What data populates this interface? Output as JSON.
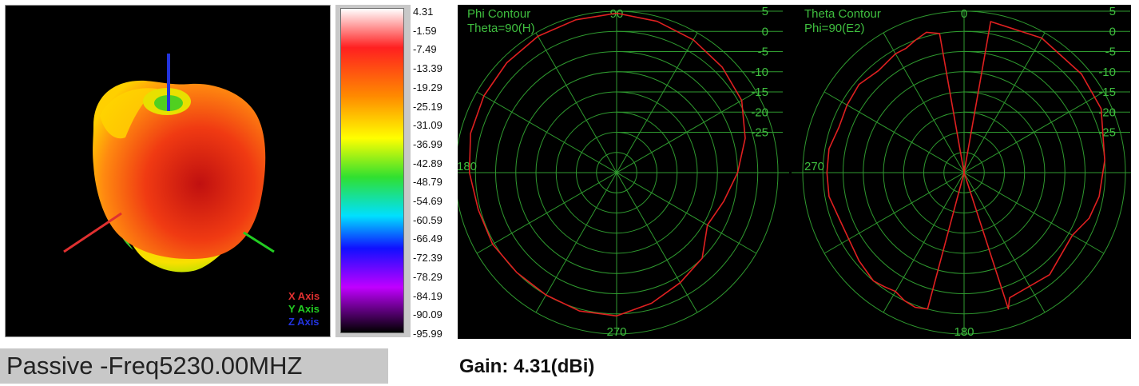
{
  "axis_legend": [
    {
      "label": "X Axis",
      "color": "#e03030"
    },
    {
      "label": "Y Axis",
      "color": "#22cc22"
    },
    {
      "label": "Z Axis",
      "color": "#2233dd"
    }
  ],
  "colorbar": {
    "max_value": 4.31,
    "min_value": -95.99,
    "stops": [
      "#ffffff",
      "#ff2020",
      "#ff8a00",
      "#ffff00",
      "#30e030",
      "#00e0ff",
      "#1010ff",
      "#c000ff",
      "#000000"
    ]
  },
  "scale_labels": [
    "4.31",
    "-1.59",
    "-7.49",
    "-13.39",
    "-19.29",
    "-25.19",
    "-31.09",
    "-36.99",
    "-42.89",
    "-48.79",
    "-54.69",
    "-60.59",
    "-66.49",
    "-72.39",
    "-78.29",
    "-84.19",
    "-90.09",
    "-95.99"
  ],
  "chart_data": [
    {
      "type": "polar",
      "title": "Phi Contour",
      "subtitle": "Theta=90(H)",
      "angle_labels": {
        "top": "90",
        "left": "180",
        "bottom": "270"
      },
      "radial_ticks": [
        5,
        0,
        -5,
        -10,
        -15,
        -20,
        -25
      ],
      "rlim": [
        -35,
        5
      ],
      "grid": true,
      "series": [
        {
          "color": "#e02020",
          "angle_deg": [
            90,
            75,
            60,
            45,
            30,
            15,
            0,
            -15,
            -30,
            -45,
            -60,
            -75,
            -90,
            -105,
            -120,
            -135,
            -150,
            -165,
            -180,
            -195,
            -210,
            -225,
            -240,
            -255
          ],
          "gain_dbi": [
            4.5,
            3.8,
            3.0,
            2.0,
            0.8,
            -2.0,
            -5.0,
            -7.5,
            -9.0,
            -5.0,
            -3.5,
            -1.5,
            0.5,
            0.5,
            0.0,
            0.0,
            0.5,
            0.5,
            1.5,
            2.5,
            3.0,
            3.5,
            4.0,
            4.2
          ]
        }
      ]
    },
    {
      "type": "polar",
      "title": "Theta Contour",
      "subtitle": "Phi=90(E2)",
      "angle_labels": {
        "top": "0",
        "left": "270",
        "bottom": "180"
      },
      "radial_ticks": [
        5,
        0,
        -5,
        -10,
        -15,
        -20,
        -25
      ],
      "rlim": [
        -35,
        5
      ],
      "grid": true,
      "series": [
        {
          "color": "#e02020",
          "angle_deg": [
            0,
            10,
            30,
            50,
            65,
            85,
            100,
            110,
            120,
            140,
            160,
            162,
            170,
            180,
            185,
            195,
            200,
            205,
            210,
            215,
            220,
            230,
            240,
            250,
            260,
            270,
            280,
            290,
            300,
            310,
            320,
            330,
            335,
            340,
            345,
            350,
            358
          ],
          "gain_dbi": [
            -35,
            3.0,
            3.5,
            3.0,
            2.5,
            0.0,
            -1.0,
            -2.0,
            -4.0,
            -2.0,
            -2.0,
            0.5,
            -35,
            -35,
            -35,
            0.0,
            0.5,
            0.0,
            -1.0,
            -0.5,
            0.0,
            -1.0,
            -2.0,
            -2.0,
            -1.0,
            -1.0,
            -1.0,
            -2.0,
            -1.5,
            -1.0,
            -2.0,
            -1.0,
            -1.0,
            0.0,
            1.0,
            0.0,
            -35
          ]
        }
      ]
    }
  ],
  "footer": {
    "mode_label": "Passive -Freq5230.00MHZ",
    "gain_label": "Gain: 4.31(dBi)"
  }
}
